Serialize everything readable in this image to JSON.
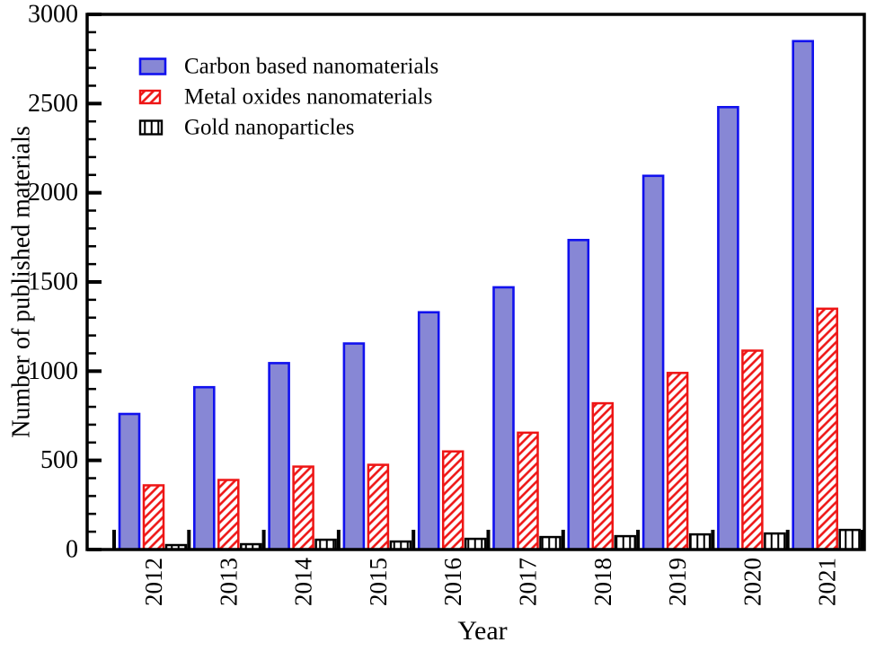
{
  "chart_data": {
    "type": "bar",
    "title": "",
    "xlabel": "Year",
    "ylabel": "Number of published materials",
    "categories": [
      "2012",
      "2013",
      "2014",
      "2015",
      "2016",
      "2017",
      "2018",
      "2019",
      "2020",
      "2021"
    ],
    "series": [
      {
        "name": "Carbon based nanomaterials",
        "key": "carbon",
        "style": "solid",
        "fill": "#8787d5",
        "border": "#1111ee",
        "values": [
          760,
          910,
          1045,
          1155,
          1330,
          1470,
          1735,
          2095,
          2480,
          2850
        ]
      },
      {
        "name": "Metal oxides nanomaterials",
        "key": "metal-oxide",
        "style": "diagonal-hatch",
        "fill": "#ffffff",
        "border": "#ee1515",
        "values": [
          360,
          390,
          465,
          475,
          550,
          655,
          820,
          990,
          1115,
          1350
        ]
      },
      {
        "name": "Gold nanoparticles",
        "key": "gold",
        "style": "vertical-hatch",
        "fill": "#ffffff",
        "border": "#000000",
        "values": [
          25,
          30,
          55,
          45,
          60,
          70,
          75,
          85,
          90,
          110
        ]
      }
    ],
    "ylim": [
      0,
      3000
    ],
    "yticks_major": [
      0,
      500,
      1000,
      1500,
      2000,
      2500,
      3000
    ],
    "ytick_minor_interval": 100,
    "grid": false,
    "legend_position": "top-left-inside",
    "frame_color": "#000000"
  }
}
